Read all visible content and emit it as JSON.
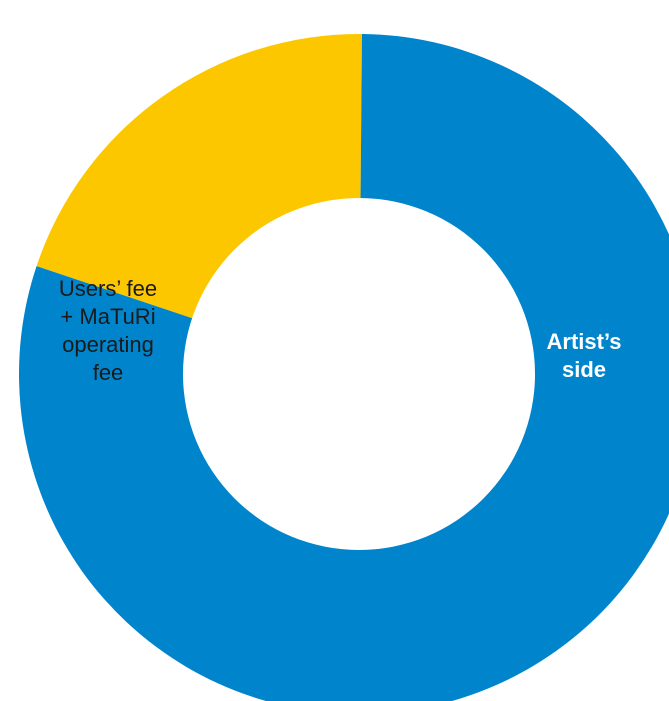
{
  "chart_data": {
    "type": "pie",
    "variant": "donut",
    "title": "",
    "legend": "none",
    "slices": [
      {
        "label_lines": [
          "Users’ fee",
          "+ MaTuRi",
          "operating",
          "fee"
        ],
        "value": 20,
        "unit": "percent",
        "color": "#FDC700",
        "label_color": "#1a1a1a"
      },
      {
        "label_lines": [
          "Artist’s",
          "side"
        ],
        "value": 80,
        "unit": "percent",
        "color": "#0085CC",
        "label_color": "#ffffff"
      }
    ]
  },
  "colors": {
    "background": "#ffffff",
    "hole": "#ffffff"
  }
}
